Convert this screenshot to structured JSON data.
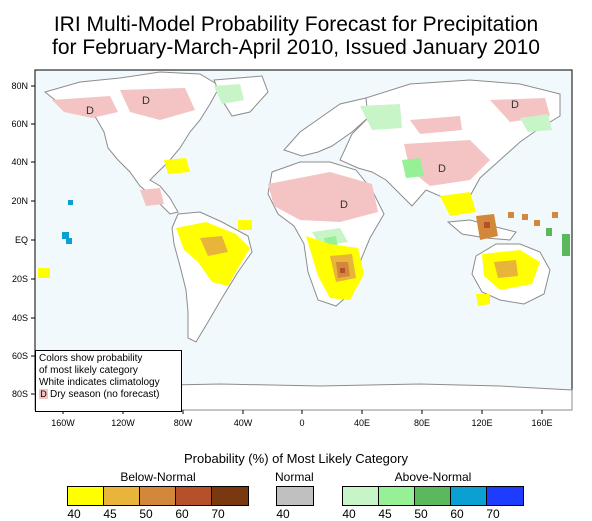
{
  "title": {
    "line1": "IRI Multi-Model Probability Forecast for Precipitation",
    "line2": "for February-March-April 2010, Issued January 2010"
  },
  "axes": {
    "y_labels": [
      "80N",
      "60N",
      "40N",
      "20N",
      "EQ",
      "20S",
      "40S",
      "60S",
      "80S"
    ],
    "x_labels": [
      "160W",
      "120W",
      "80W",
      "40W",
      "0",
      "40E",
      "80E",
      "120E",
      "160E"
    ]
  },
  "map_note": {
    "line1": "Colors show probability",
    "line2": "of most likely category",
    "line3": "White indicates climatology",
    "dry_symbol": "D",
    "dry_text": "Dry season (no forecast)"
  },
  "dry_markers": [
    "D",
    "D",
    "D",
    "D",
    "D"
  ],
  "legend": {
    "title": "Probability (%) of Most Likely Category",
    "below": {
      "label": "Below-Normal",
      "colors": [
        "#ffff00",
        "#e8b43a",
        "#d2873a",
        "#b5502a",
        "#7a3810"
      ],
      "ticks": [
        "40",
        "45",
        "50",
        "60",
        "70"
      ]
    },
    "normal": {
      "label": "Normal",
      "colors": [
        "#c0c0c0"
      ],
      "ticks": [
        "40"
      ]
    },
    "above": {
      "label": "Above-Normal",
      "colors": [
        "#c8f5c8",
        "#96f096",
        "#5cb85c",
        "#0aa0d2",
        "#1e3cff"
      ],
      "ticks": [
        "40",
        "45",
        "50",
        "60",
        "70"
      ]
    }
  },
  "colors": {
    "ocean": "#f2f9fd",
    "land": "#ffffff",
    "dry_season": "#f4c3c3",
    "coast": "#8c8c8c"
  }
}
